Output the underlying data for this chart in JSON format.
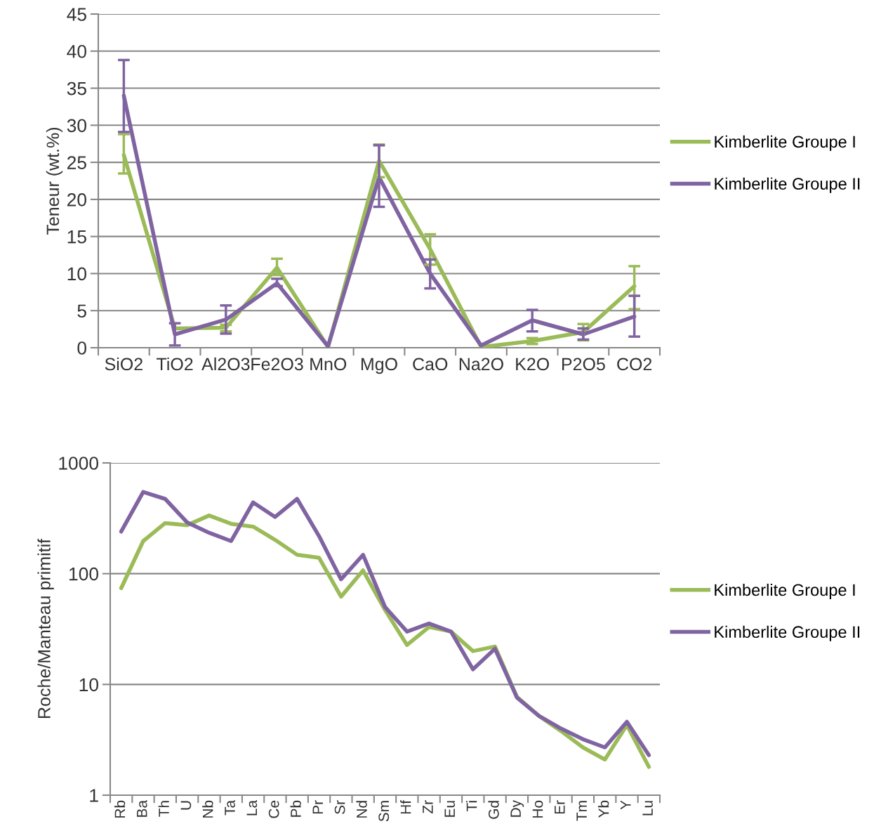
{
  "chart_data": [
    {
      "type": "line",
      "ylabel": "Teneur (wt.%)",
      "categories": [
        "SiO2",
        "TiO2",
        "Al2O3",
        "Fe2O3",
        "MnO",
        "MgO",
        "CaO",
        "Na2O",
        "K2O",
        "P2O5",
        "CO2"
      ],
      "ylim": [
        0,
        45
      ],
      "yticks": [
        0,
        5,
        10,
        15,
        20,
        25,
        30,
        35,
        40,
        45
      ],
      "grid": "y",
      "legend": "right",
      "marker": "none",
      "line_style": "solid",
      "series": [
        {
          "name": "Kimberlite Groupe I",
          "color": "#9bbb59",
          "values": [
            26.0,
            2.6,
            2.7,
            10.8,
            0.1,
            25.2,
            13.3,
            0.1,
            0.9,
            2.1,
            8.3
          ],
          "errors": [
            [
              23.5,
              28.8
            ],
            null,
            [
              2.2,
              3.1
            ],
            [
              9.8,
              12.0
            ],
            null,
            [
              23.0,
              27.4
            ],
            [
              11.2,
              15.3
            ],
            null,
            [
              0.5,
              1.3
            ],
            [
              1.0,
              3.2
            ],
            [
              5.2,
              11.0
            ]
          ]
        },
        {
          "name": "Kimberlite Groupe II",
          "color": "#8064a2",
          "values": [
            34.0,
            1.8,
            3.8,
            8.7,
            0.2,
            23.0,
            10.0,
            0.3,
            3.7,
            1.8,
            4.2
          ],
          "errors": [
            [
              29.1,
              38.8
            ],
            [
              0.3,
              3.3
            ],
            [
              1.9,
              5.7
            ],
            [
              8.3,
              9.3
            ],
            null,
            [
              19.0,
              27.3
            ],
            [
              8.0,
              11.9
            ],
            null,
            [
              2.2,
              5.1
            ],
            [
              1.1,
              2.6
            ],
            [
              1.5,
              7.0
            ]
          ]
        }
      ]
    },
    {
      "type": "line",
      "ylabel": "Roche/Manteau primitif",
      "categories": [
        "Rb",
        "Ba",
        "Th",
        "U",
        "Nb",
        "Ta",
        "La",
        "Ce",
        "Pb",
        "Pr",
        "Sr",
        "Nd",
        "Sm",
        "Hf",
        "Zr",
        "Eu",
        "Ti",
        "Gd",
        "Dy",
        "Ho",
        "Er",
        "Tm",
        "Yb",
        "Y",
        "Lu"
      ],
      "log": true,
      "ylim": [
        1,
        1000
      ],
      "yticks": [
        1,
        10,
        100,
        1000
      ],
      "grid": "y",
      "legend": "right",
      "marker": "none",
      "line_style": "solid",
      "series": [
        {
          "name": "Kimberlite Groupe I",
          "color": "#9bbb59",
          "values": [
            74,
            197,
            286,
            274,
            335,
            282,
            266,
            202,
            148,
            139,
            62,
            107,
            47,
            22.7,
            33,
            30,
            20,
            22,
            7.7,
            5.2,
            3.8,
            2.7,
            2.1,
            4.3,
            1.8
          ]
        },
        {
          "name": "Kimberlite Groupe II",
          "color": "#8064a2",
          "values": [
            240,
            546,
            473,
            290,
            234,
            197,
            440,
            325,
            473,
            218,
            89,
            148,
            50,
            30,
            35.5,
            30,
            13.7,
            21,
            7.6,
            5.2,
            4.0,
            3.2,
            2.7,
            4.6,
            2.3
          ]
        }
      ]
    }
  ]
}
